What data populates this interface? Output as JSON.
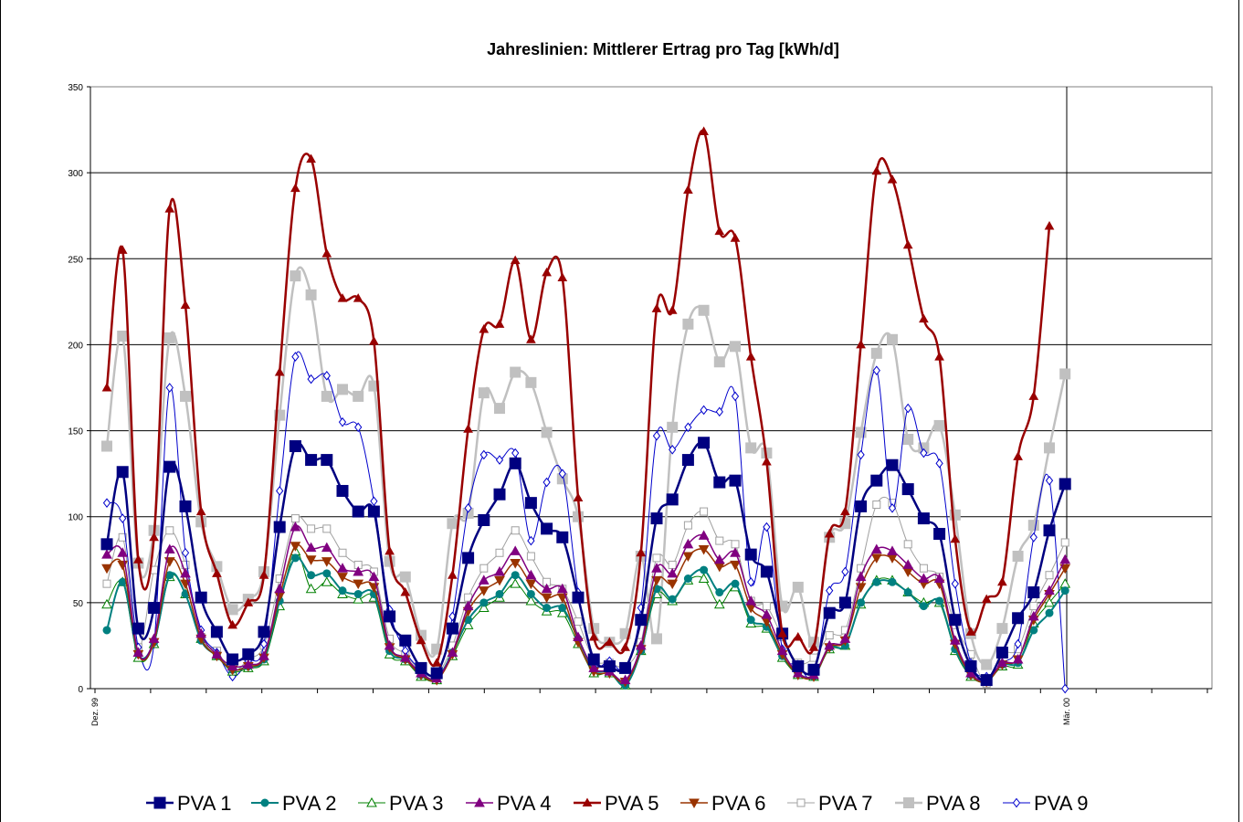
{
  "chart_data": {
    "type": "line",
    "title": "Jahreslinien: Mittlerer Ertrag pro Tag [kWh/d]",
    "xlabel": "",
    "ylabel": "",
    "ylim": [
      0,
      350
    ],
    "yticks": [
      0,
      50,
      100,
      150,
      200,
      250,
      300,
      350
    ],
    "grid": true,
    "legend_position": "bottom",
    "x_tick_labels": [
      "Dez. 99",
      "Mär. 00"
    ],
    "x": [
      1,
      2,
      3,
      4,
      5,
      6,
      7,
      8,
      9,
      10,
      11,
      12,
      13,
      14,
      15,
      16,
      17,
      18,
      19,
      20,
      21,
      22,
      23,
      24,
      25,
      26,
      27,
      28,
      29,
      30,
      31,
      32,
      33,
      34,
      35,
      36,
      37,
      38,
      39,
      40,
      41,
      42,
      43,
      44,
      45,
      46,
      47,
      48,
      49,
      50,
      51,
      52,
      53,
      54,
      55,
      56,
      57,
      58,
      59,
      60,
      61,
      62,
      63
    ],
    "series": [
      {
        "name": "PVA 1",
        "color": "#000080",
        "marker": "square-filled",
        "values": [
          84,
          126,
          35,
          47,
          129,
          106,
          53,
          33,
          17,
          20,
          33,
          94,
          141,
          133,
          133,
          115,
          103,
          103,
          42,
          28,
          12,
          9,
          35,
          76,
          98,
          113,
          131,
          108,
          93,
          88,
          53,
          17,
          13,
          12,
          40,
          99,
          110,
          133,
          143,
          120,
          121,
          78,
          68,
          32,
          13,
          11,
          44,
          50,
          106,
          121,
          130,
          116,
          99,
          90,
          40,
          13,
          5,
          21,
          41,
          56,
          92,
          119,
          null
        ]
      },
      {
        "name": "PVA 2",
        "color": "#008080",
        "marker": "circle-filled",
        "values": [
          34,
          62,
          20,
          27,
          66,
          55,
          28,
          19,
          11,
          13,
          17,
          51,
          76,
          66,
          67,
          57,
          55,
          55,
          22,
          17,
          8,
          6,
          21,
          40,
          50,
          55,
          66,
          55,
          47,
          47,
          29,
          11,
          10,
          2,
          22,
          58,
          52,
          64,
          69,
          56,
          61,
          40,
          36,
          19,
          9,
          7,
          24,
          25,
          50,
          62,
          62,
          56,
          48,
          51,
          23,
          8,
          4,
          14,
          15,
          34,
          44,
          57,
          null
        ]
      },
      {
        "name": "PVA 3",
        "color": "#008000",
        "marker": "triangle-open",
        "values": [
          49,
          62,
          18,
          26,
          65,
          55,
          29,
          19,
          10,
          12,
          16,
          48,
          80,
          58,
          62,
          55,
          52,
          53,
          20,
          16,
          7,
          5,
          19,
          37,
          47,
          53,
          61,
          51,
          45,
          44,
          26,
          9,
          9,
          2,
          22,
          55,
          51,
          63,
          64,
          49,
          59,
          38,
          35,
          18,
          8,
          7,
          23,
          25,
          49,
          63,
          63,
          56,
          50,
          50,
          22,
          7,
          4,
          13,
          14,
          38,
          50,
          61,
          null
        ]
      },
      {
        "name": "PVA 4",
        "color": "#800080",
        "marker": "triangle-filled",
        "values": [
          78,
          79,
          21,
          29,
          81,
          67,
          32,
          20,
          13,
          14,
          19,
          58,
          94,
          82,
          82,
          70,
          68,
          65,
          25,
          18,
          9,
          6,
          21,
          48,
          63,
          68,
          80,
          66,
          58,
          58,
          30,
          12,
          10,
          5,
          25,
          70,
          67,
          84,
          89,
          75,
          79,
          51,
          43,
          22,
          9,
          8,
          25,
          29,
          65,
          81,
          80,
          72,
          64,
          64,
          28,
          9,
          5,
          15,
          17,
          42,
          57,
          75,
          null
        ]
      },
      {
        "name": "PVA 5",
        "color": "#990000",
        "marker": "triangle-filled",
        "values": [
          175,
          255,
          75,
          88,
          279,
          223,
          103,
          67,
          37,
          50,
          66,
          184,
          291,
          308,
          253,
          227,
          227,
          202,
          80,
          56,
          28,
          15,
          66,
          151,
          209,
          212,
          249,
          203,
          242,
          239,
          111,
          30,
          27,
          24,
          79,
          221,
          220,
          290,
          324,
          266,
          262,
          193,
          132,
          32,
          30,
          24,
          90,
          103,
          200,
          301,
          296,
          258,
          215,
          193,
          87,
          33,
          52,
          62,
          135,
          170,
          269,
          null,
          null
        ]
      },
      {
        "name": "PVA 6",
        "color": "#993300",
        "marker": "triangle-down-filled",
        "values": [
          70,
          72,
          20,
          27,
          74,
          61,
          29,
          19,
          11,
          13,
          18,
          54,
          83,
          75,
          74,
          65,
          61,
          59,
          24,
          17,
          8,
          5,
          20,
          45,
          57,
          63,
          73,
          61,
          53,
          53,
          27,
          10,
          9,
          4,
          23,
          63,
          61,
          77,
          81,
          71,
          72,
          47,
          39,
          20,
          8,
          7,
          24,
          28,
          59,
          76,
          76,
          68,
          61,
          61,
          26,
          8,
          4,
          14,
          17,
          40,
          55,
          70,
          null
        ]
      },
      {
        "name": "PVA 7",
        "color": "#a0a0a0",
        "marker": "square-open",
        "values": [
          61,
          88,
          24,
          69,
          92,
          72,
          30,
          22,
          10,
          17,
          25,
          64,
          99,
          93,
          93,
          79,
          72,
          68,
          29,
          20,
          10,
          8,
          25,
          53,
          70,
          79,
          92,
          77,
          62,
          58,
          39,
          17,
          15,
          13,
          27,
          76,
          72,
          95,
          103,
          86,
          84,
          51,
          48,
          30,
          15,
          18,
          31,
          34,
          70,
          107,
          108,
          84,
          70,
          65,
          37,
          20,
          3,
          20,
          23,
          48,
          66,
          85,
          null
        ]
      },
      {
        "name": "PVA 8",
        "color": "#c0c0c0",
        "marker": "square-filled",
        "values": [
          141,
          205,
          73,
          92,
          204,
          170,
          97,
          71,
          46,
          52,
          68,
          159,
          240,
          229,
          170,
          174,
          170,
          176,
          74,
          65,
          31,
          23,
          96,
          102,
          172,
          163,
          184,
          178,
          149,
          122,
          100,
          35,
          27,
          32,
          77,
          29,
          152,
          212,
          220,
          190,
          199,
          140,
          137,
          48,
          59,
          27,
          88,
          96,
          149,
          195,
          203,
          145,
          140,
          153,
          101,
          32,
          14,
          35,
          77,
          95,
          140,
          183,
          null
        ]
      },
      {
        "name": "PVA 9",
        "color": "#0000cc",
        "marker": "diamond-open",
        "values": [
          108,
          99,
          24,
          26,
          175,
          79,
          34,
          21,
          7,
          16,
          26,
          115,
          193,
          180,
          182,
          155,
          152,
          109,
          46,
          22,
          11,
          6,
          42,
          105,
          136,
          133,
          137,
          86,
          120,
          125,
          56,
          15,
          16,
          12,
          47,
          147,
          139,
          152,
          162,
          161,
          170,
          62,
          94,
          23,
          14,
          8,
          57,
          68,
          136,
          185,
          105,
          163,
          137,
          131,
          61,
          15,
          7,
          15,
          26,
          88,
          121,
          0,
          null
        ]
      }
    ]
  },
  "legend": {
    "items": [
      {
        "label": "PVA 1"
      },
      {
        "label": "PVA 2"
      },
      {
        "label": "PVA 3"
      },
      {
        "label": "PVA 4"
      },
      {
        "label": "PVA 5"
      },
      {
        "label": "PVA 6"
      },
      {
        "label": "PVA 7"
      },
      {
        "label": "PVA 8"
      },
      {
        "label": "PVA 9"
      }
    ]
  }
}
